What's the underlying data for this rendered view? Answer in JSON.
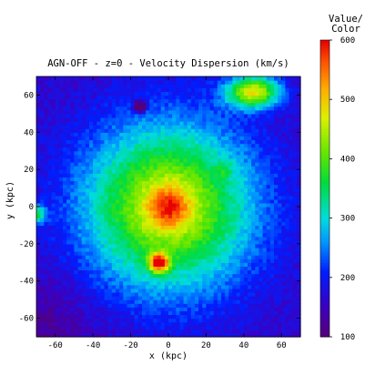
{
  "chart_data": {
    "type": "heatmap",
    "title": "AGN-OFF - z=0 - Velocity Dispersion (km/s)",
    "xlabel": "x (kpc)",
    "ylabel": "y (kpc)",
    "xlim": [
      -70,
      70
    ],
    "ylim": [
      -70,
      70
    ],
    "xticks": [
      -60,
      -40,
      -20,
      0,
      20,
      40,
      60
    ],
    "xtick_labels": [
      "-60",
      "-40",
      "-20",
      "0",
      "20",
      "40",
      "60"
    ],
    "yticks": [
      -60,
      -40,
      -20,
      0,
      20,
      40,
      60
    ],
    "ytick_labels": [
      "-60",
      "-40",
      "-20",
      "0",
      "20",
      "40",
      "60"
    ],
    "colorbar": {
      "title_line1": "Value/",
      "title_line2": "Color",
      "range": [
        100,
        600
      ],
      "ticks": [
        100,
        200,
        300,
        400,
        500,
        600
      ],
      "tick_labels": [
        "100",
        "200",
        "300",
        "400",
        "500",
        "600"
      ]
    },
    "field": {
      "background_value": 160,
      "center_peak_value": 590,
      "features": [
        {
          "name": "central core",
          "x": 0,
          "y": 0,
          "value": 580
        },
        {
          "name": "southern clump",
          "x": -5,
          "y": -30,
          "value": 600
        },
        {
          "name": "north-east clump",
          "x": 45,
          "y": 62,
          "value": 580
        },
        {
          "name": "north-west blob",
          "x": -15,
          "y": 54,
          "value": 150
        },
        {
          "name": "west edge blob",
          "x": -70,
          "y": -4,
          "value": 350
        }
      ]
    }
  }
}
